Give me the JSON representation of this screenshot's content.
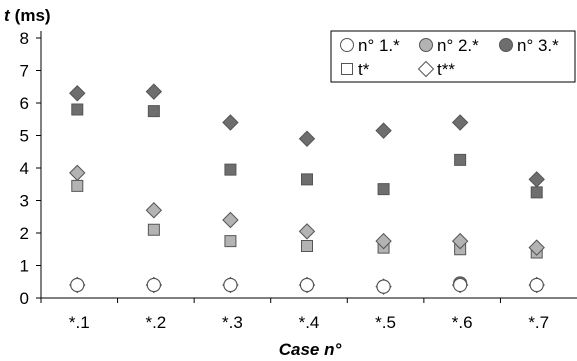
{
  "chart_data": {
    "type": "scatter",
    "title": "",
    "ylabel": "t (ms)",
    "ylabel_var": "t",
    "ylabel_unit": "(ms)",
    "xlabel": "Case n°",
    "categories": [
      "*.1",
      "*.2",
      "*.3",
      "*.4",
      "*.5",
      "*.6",
      "*.7"
    ],
    "ylim": [
      0,
      8
    ],
    "yticks": [
      "0",
      "1",
      "2",
      "3",
      "4",
      "5",
      "6",
      "7",
      "8"
    ],
    "grid": false,
    "legend_position": "top-right",
    "series": [
      {
        "name": "n° 1.*",
        "marker": "circle",
        "fill": "#ffffff",
        "values": [
          0.4,
          0.4,
          0.4,
          0.4,
          0.35,
          0.4,
          0.4
        ]
      },
      {
        "name": "n° 2.*",
        "marker": "circle",
        "fill": "#b3b3b3",
        "values": [
          0.4,
          0.4,
          0.4,
          0.4,
          0.35,
          0.45,
          0.4
        ]
      },
      {
        "name": "n° 3.*",
        "marker": "circle",
        "fill": "#6e6e6e",
        "values": [
          0.4,
          0.4,
          0.4,
          0.4,
          0.35,
          0.45,
          0.4
        ]
      },
      {
        "name": "t*",
        "marker": "square",
        "fill": "#b3b3b3",
        "values": [
          3.45,
          2.1,
          1.75,
          1.6,
          1.55,
          1.5,
          1.4
        ]
      },
      {
        "name": "t**",
        "marker": "diamond",
        "fill": "#b3b3b3",
        "values": [
          3.85,
          2.7,
          2.4,
          2.05,
          1.75,
          1.75,
          1.55
        ]
      },
      {
        "name": "",
        "marker": "square",
        "fill": "#6e6e6e",
        "values": [
          5.8,
          5.75,
          3.95,
          3.65,
          3.35,
          4.25,
          3.25
        ]
      },
      {
        "name": "",
        "marker": "diamond",
        "fill": "#6e6e6e",
        "values": [
          6.3,
          6.35,
          5.4,
          4.9,
          5.15,
          5.4,
          3.65
        ]
      },
      {
        "name": "",
        "marker": "diamond",
        "fill": "#ffffff",
        "values": [
          0.4,
          0.4,
          0.4,
          0.4,
          0.35,
          0.4,
          0.4
        ]
      }
    ],
    "legend": [
      {
        "label": "n° 1.*",
        "marker": "circle",
        "fill": "#ffffff"
      },
      {
        "label": "n° 2.*",
        "marker": "circle",
        "fill": "#b3b3b3"
      },
      {
        "label": "n° 3.*",
        "marker": "circle",
        "fill": "#6e6e6e"
      },
      {
        "label": "t*",
        "marker": "square",
        "fill": "#ffffff"
      },
      {
        "label": "t**",
        "marker": "diamond",
        "fill": "#ffffff"
      }
    ]
  }
}
